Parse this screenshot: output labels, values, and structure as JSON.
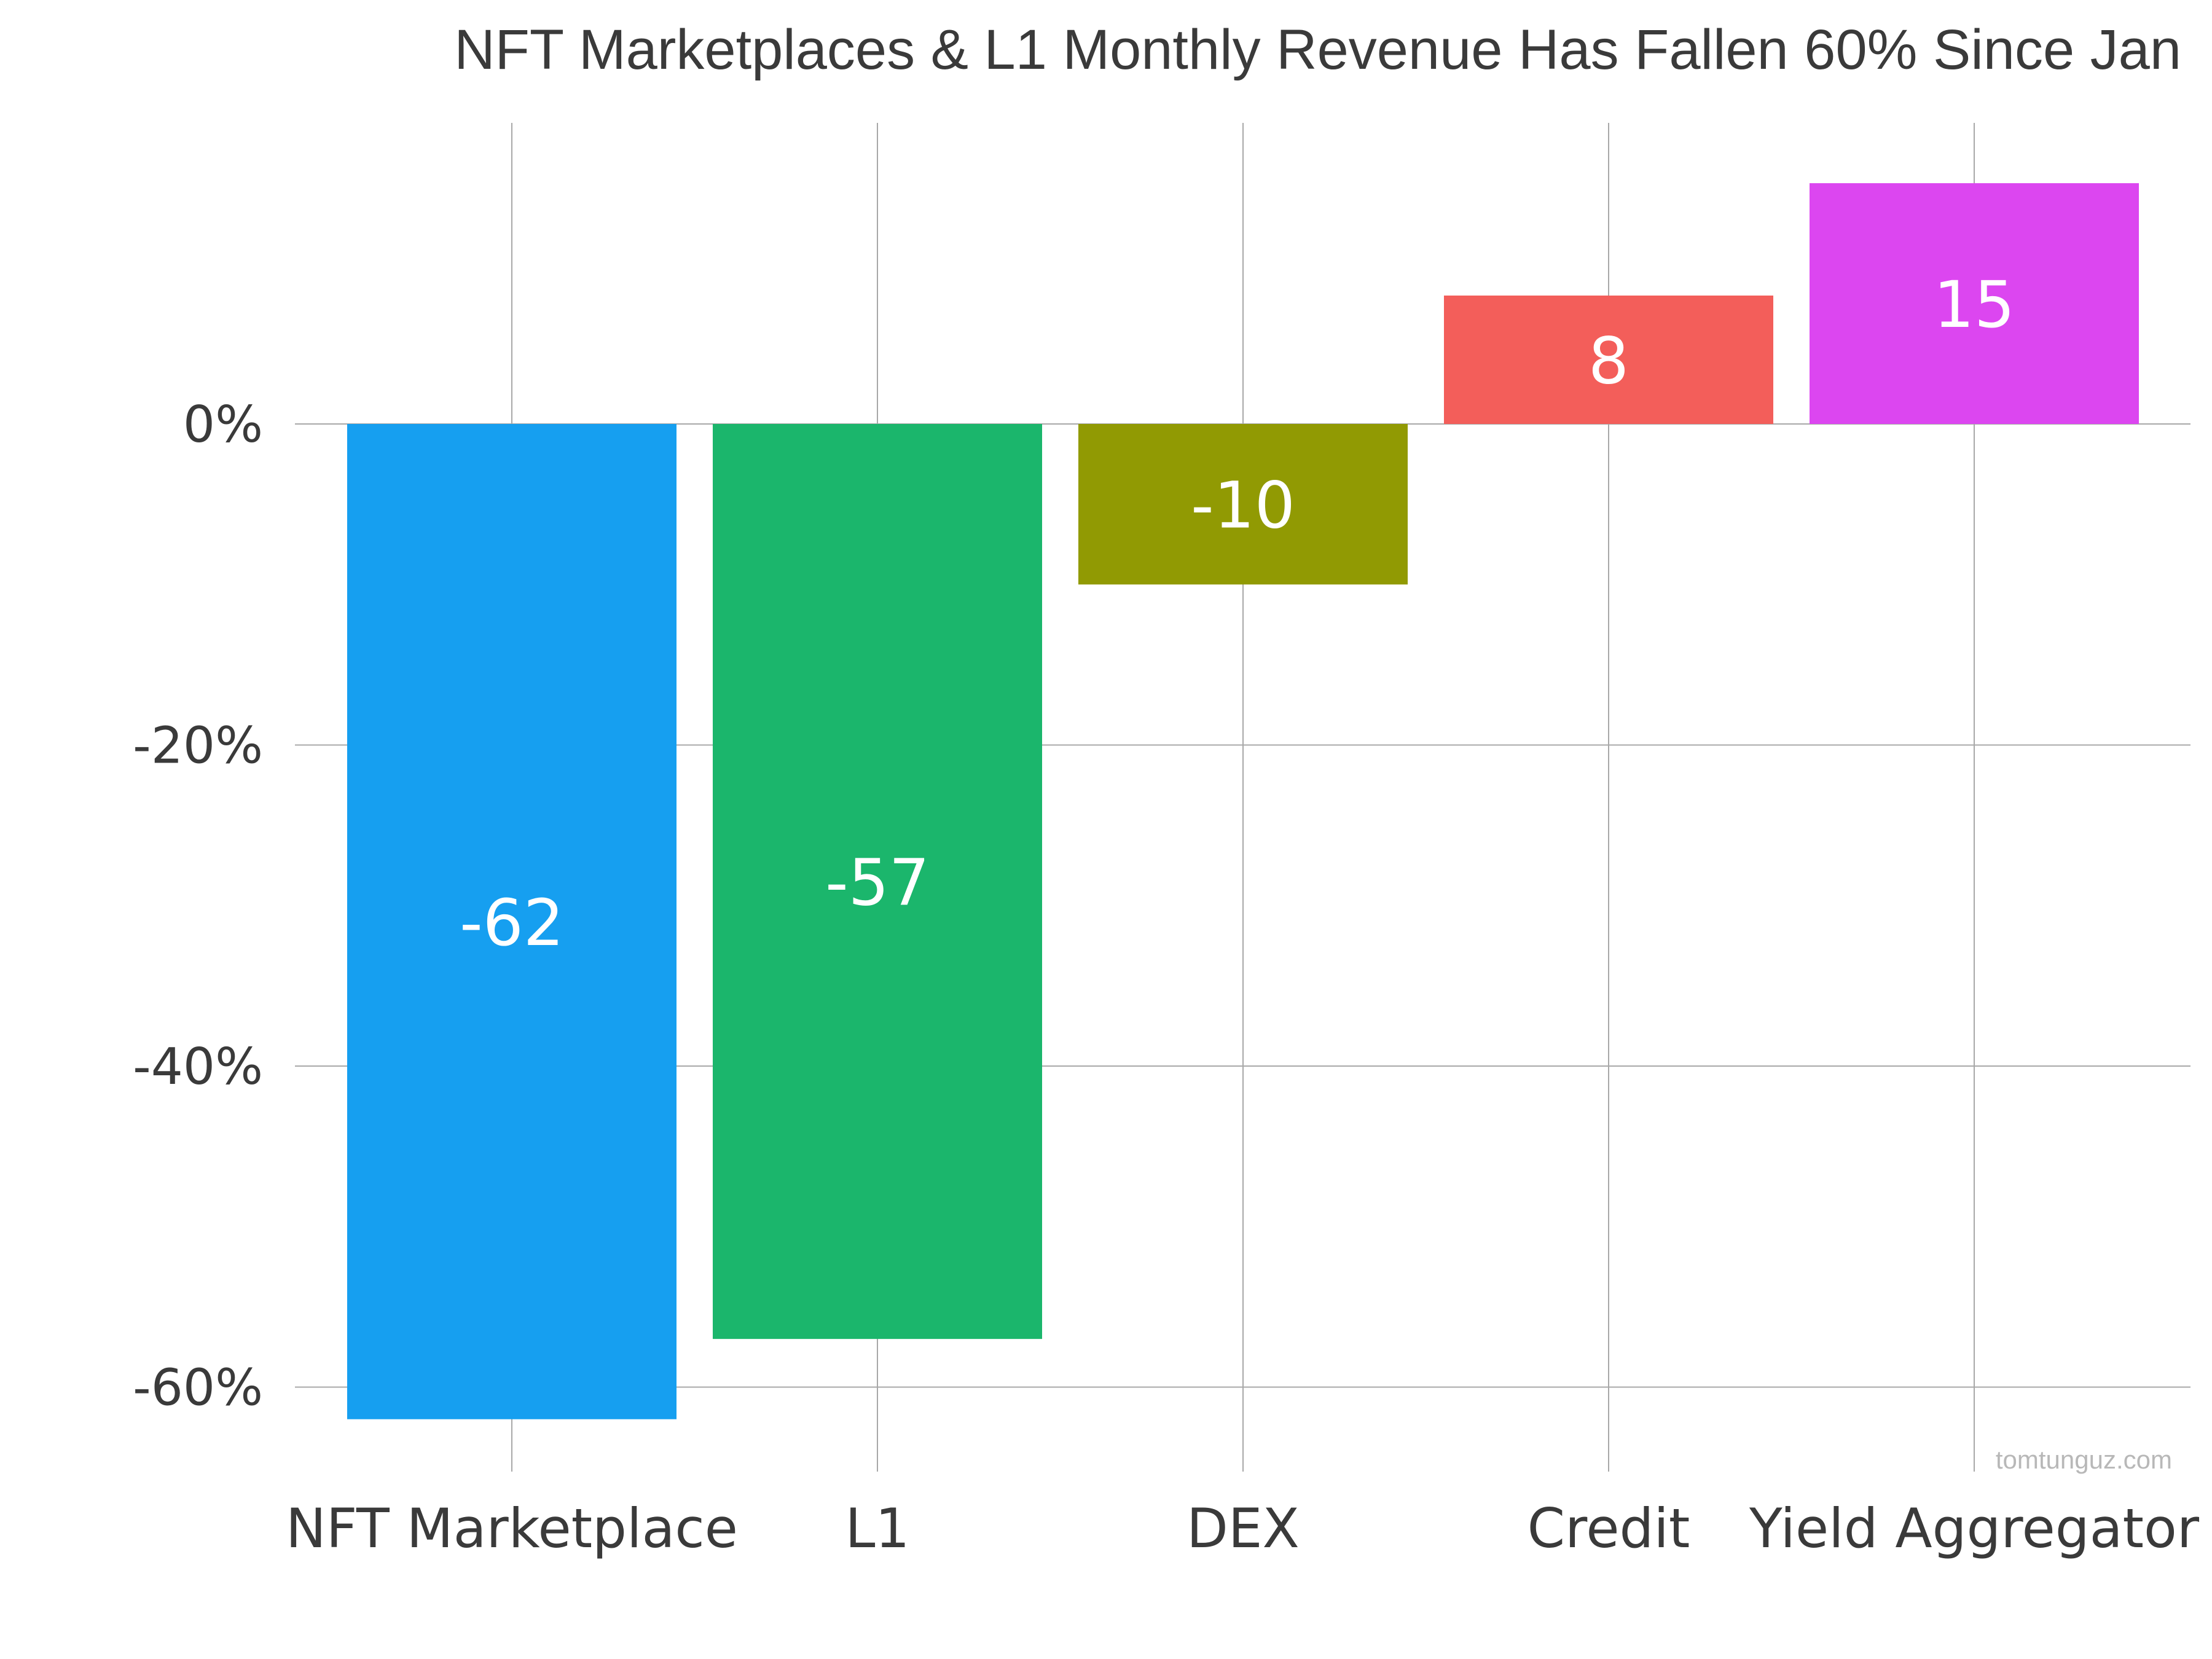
{
  "chart_data": {
    "type": "bar",
    "title": "NFT Marketplaces & L1 Monthly Revenue Has Fallen 60% Since Jan",
    "xlabel": "",
    "ylabel": "",
    "categories": [
      "NFT Marketplace",
      "L1",
      "DEX",
      "Credit",
      "Yield Aggregator"
    ],
    "values": [
      -62,
      -57,
      -10,
      8,
      15
    ],
    "data_labels": [
      "-62",
      "-57",
      "-10",
      "8",
      "15"
    ],
    "colors": [
      "#169ff0",
      "#1bb66c",
      "#919a03",
      "#f35e5a",
      "#dc46f0"
    ],
    "ylim": [
      -65,
      19
    ],
    "yticks": [
      0,
      -20,
      -40,
      -60
    ],
    "ytick_labels": [
      "0%",
      "-20%",
      "-40%",
      "-60%"
    ],
    "grid": true,
    "legend": "none"
  },
  "watermark": "tomtunguz.com"
}
